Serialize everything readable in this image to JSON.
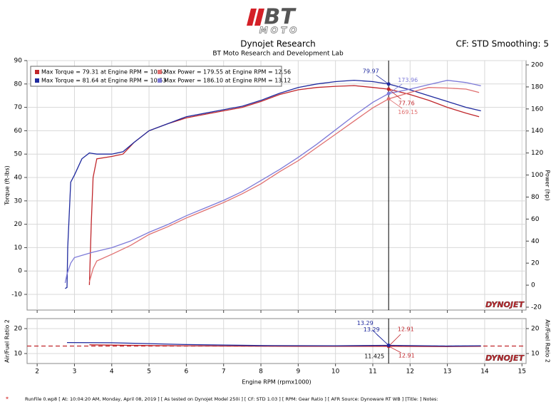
{
  "header": {
    "logo": "BT",
    "logo_sub": "MOTO",
    "settings": "CF: STD Smoothing: 5"
  },
  "footer": "RunFile 0.wp8 [ At: 10:04:20 AM, Monday, April 08, 2019 ] [ As tested on Dynojet Model 250i ] [ CF: STD 1.03 ] [ RPM: Gear Ratio ] [ AFR Source: Dynoware RT WB ] [Title: ] Notes:",
  "chart_data": [
    {
      "type": "line",
      "title": "Dynojet Research",
      "subtitle": "BT Moto Research and Development Lab",
      "ylabel": "Torque (ft-lbs)",
      "y2label": "Power (hp)",
      "watermark": "DYNOJET",
      "xlim": [
        1.73,
        15.11
      ],
      "xticks": [
        2,
        3,
        4,
        5,
        6,
        7,
        8,
        9,
        10,
        11,
        12,
        13,
        14,
        15
      ],
      "ylim": [
        -16.7,
        90
      ],
      "yticks": [
        -10,
        0,
        10,
        20,
        30,
        40,
        50,
        60,
        70,
        80,
        90
      ],
      "y2lim": [
        -22.6,
        203.9
      ],
      "y2ticks": [
        -20,
        0,
        20,
        40,
        60,
        80,
        100,
        120,
        140,
        160,
        180,
        200
      ],
      "grid": true,
      "legend": "upper left",
      "cursor": 11.425,
      "series": [
        {
          "name": "Max Torque = 79.31 at Engine RPM = 10.62",
          "color": "#c0262b",
          "x": [
            3.4,
            3.45,
            3.5,
            3.6,
            4.0,
            4.3,
            4.6,
            5.0,
            5.5,
            6.0,
            6.5,
            7.0,
            7.5,
            8.0,
            8.5,
            9.0,
            9.5,
            10.0,
            10.5,
            11.0,
            11.425,
            12.0,
            12.5,
            13.0,
            13.5,
            13.85
          ],
          "values": [
            -6,
            20,
            40,
            48,
            49,
            50,
            55,
            60,
            63,
            65.5,
            67,
            68.5,
            70,
            72.5,
            75.5,
            77.5,
            78.5,
            79,
            79.3,
            78.5,
            77.76,
            75.5,
            73,
            70,
            67.5,
            66
          ]
        },
        {
          "name": "Max Torque = 81.64 at Engine RPM = 10.53",
          "color": "#1f2a9e",
          "x": [
            2.75,
            2.8,
            2.82,
            2.9,
            3.0,
            3.2,
            3.4,
            3.6,
            4.0,
            4.3,
            4.6,
            5.0,
            5.5,
            6.0,
            6.5,
            7.0,
            7.5,
            8.0,
            8.5,
            9.0,
            9.5,
            10.0,
            10.5,
            11.0,
            11.425,
            12.0,
            12.5,
            13.0,
            13.5,
            13.9
          ],
          "values": [
            -7.5,
            -7,
            10,
            38,
            41,
            48,
            50.5,
            50,
            50,
            51,
            55,
            60,
            63,
            66,
            67.5,
            69,
            70.5,
            73,
            76,
            78.5,
            80,
            81,
            81.6,
            81,
            79.97,
            77.5,
            75,
            72.5,
            70,
            68.5
          ]
        },
        {
          "name": "Max Power = 179.55 at Engine RPM = 12.56",
          "color": "#e07070",
          "axis": "y2",
          "x": [
            3.4,
            3.5,
            3.6,
            4.0,
            4.5,
            5.0,
            5.5,
            6.0,
            6.5,
            7.0,
            7.5,
            8.0,
            8.5,
            9.0,
            9.5,
            10.0,
            10.5,
            11.0,
            11.425,
            12.0,
            12.5,
            13.0,
            13.5,
            13.85
          ],
          "values": [
            3,
            15,
            22,
            28,
            36,
            46,
            53,
            61,
            68,
            75,
            83,
            92,
            103,
            113,
            125,
            137,
            149,
            161,
            169.15,
            175,
            179.5,
            179,
            178,
            175
          ]
        },
        {
          "name": "Max Power = 186.10 at Engine RPM = 13.12",
          "color": "#7d7ad8",
          "axis": "y2",
          "x": [
            2.75,
            2.8,
            2.9,
            3.0,
            3.5,
            4.0,
            4.5,
            5.0,
            5.5,
            6.0,
            6.5,
            7.0,
            7.5,
            8.0,
            8.5,
            9.0,
            9.5,
            10.0,
            10.5,
            11.0,
            11.425,
            12.0,
            12.5,
            13.0,
            13.5,
            13.9
          ],
          "values": [
            2,
            10,
            20,
            25,
            30,
            34,
            40,
            48,
            55,
            63,
            70,
            77,
            85,
            95,
            105,
            116,
            128,
            141,
            154,
            166,
            173.96,
            178,
            182,
            186,
            184,
            181
          ]
        }
      ]
    },
    {
      "type": "line",
      "xlabel": "Engine RPM (rpmx1000)",
      "ylabel": "Air/Fuel Ratio 2",
      "y2label": "Air/Fuel Ratio 2",
      "watermark": "DYNOJET",
      "xlim": [
        1.73,
        15.11
      ],
      "xticks": [
        2,
        3,
        4,
        5,
        6,
        7,
        8,
        9,
        10,
        11,
        12,
        13,
        14,
        15
      ],
      "ylim": [
        6,
        24
      ],
      "yticks": [
        10,
        20
      ],
      "y2lim": [
        6,
        24
      ],
      "y2ticks": [
        10,
        20
      ],
      "grid": true,
      "cursor": 11.425,
      "reference": 13,
      "series": [
        {
          "color": "#c0262b",
          "x": [
            3.4,
            5,
            7,
            9,
            11.425,
            13,
            13.9
          ],
          "values": [
            13.5,
            13.2,
            13.0,
            12.9,
            12.91,
            12.8,
            12.9
          ]
        },
        {
          "color": "#1f2a9e",
          "x": [
            2.8,
            4,
            6,
            8,
            10,
            11.425,
            13,
            13.9
          ],
          "values": [
            14.4,
            14.3,
            13.6,
            13.2,
            13.1,
            13.29,
            13.0,
            13.1
          ]
        }
      ]
    }
  ]
}
